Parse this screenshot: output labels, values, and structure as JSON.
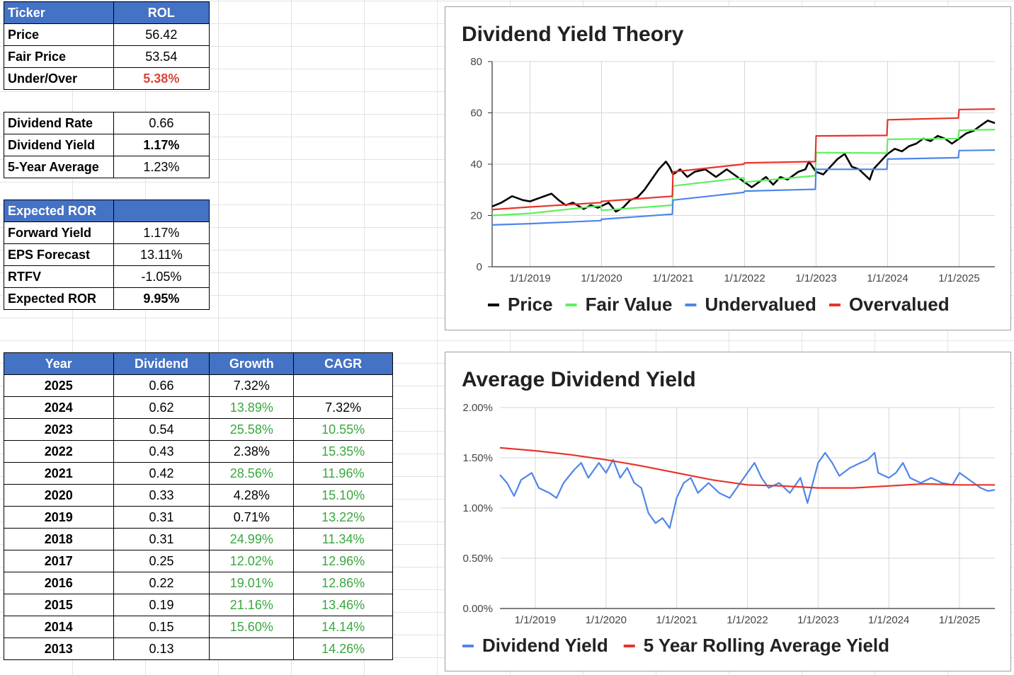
{
  "summary": {
    "header": {
      "label": "Ticker",
      "value": "ROL"
    },
    "rows": [
      {
        "label": "Price",
        "value": "56.42",
        "style": "normal"
      },
      {
        "label": "Fair Price",
        "value": "53.54",
        "style": "normal"
      },
      {
        "label": "Under/Over",
        "value": "5.38%",
        "style": "red"
      }
    ]
  },
  "dividend": {
    "rows": [
      {
        "label": "Dividend Rate",
        "value": "0.66",
        "style": "normal"
      },
      {
        "label": "Dividend Yield",
        "value": "1.17%",
        "style": "bold"
      },
      {
        "label": "5-Year Average",
        "value": "1.23%",
        "style": "normal"
      }
    ]
  },
  "ror": {
    "header": {
      "label": "Expected ROR",
      "value": ""
    },
    "rows": [
      {
        "label": "Forward Yield",
        "value": "1.17%",
        "style": "normal"
      },
      {
        "label": "EPS Forecast",
        "value": "13.11%",
        "style": "normal"
      },
      {
        "label": "RTFV",
        "value": "-1.05%",
        "style": "normal"
      },
      {
        "label": "Expected ROR",
        "value": "9.95%",
        "style": "bold"
      }
    ]
  },
  "history": {
    "columns": [
      "Year",
      "Dividend",
      "Growth",
      "CAGR"
    ],
    "rows": [
      {
        "year": "2025",
        "dividend": "0.66",
        "growth": "7.32%",
        "growth_color": "black",
        "cagr": "",
        "cagr_color": "green"
      },
      {
        "year": "2024",
        "dividend": "0.62",
        "growth": "13.89%",
        "growth_color": "green",
        "cagr": "7.32%",
        "cagr_color": "black"
      },
      {
        "year": "2023",
        "dividend": "0.54",
        "growth": "25.58%",
        "growth_color": "green",
        "cagr": "10.55%",
        "cagr_color": "green"
      },
      {
        "year": "2022",
        "dividend": "0.43",
        "growth": "2.38%",
        "growth_color": "black",
        "cagr": "15.35%",
        "cagr_color": "green"
      },
      {
        "year": "2021",
        "dividend": "0.42",
        "growth": "28.56%",
        "growth_color": "green",
        "cagr": "11.96%",
        "cagr_color": "green"
      },
      {
        "year": "2020",
        "dividend": "0.33",
        "growth": "4.28%",
        "growth_color": "black",
        "cagr": "15.10%",
        "cagr_color": "green"
      },
      {
        "year": "2019",
        "dividend": "0.31",
        "growth": "0.71%",
        "growth_color": "black",
        "cagr": "13.22%",
        "cagr_color": "green"
      },
      {
        "year": "2018",
        "dividend": "0.31",
        "growth": "24.99%",
        "growth_color": "green",
        "cagr": "11.34%",
        "cagr_color": "green"
      },
      {
        "year": "2017",
        "dividend": "0.25",
        "growth": "12.02%",
        "growth_color": "green",
        "cagr": "12.96%",
        "cagr_color": "green"
      },
      {
        "year": "2016",
        "dividend": "0.22",
        "growth": "19.01%",
        "growth_color": "green",
        "cagr": "12.86%",
        "cagr_color": "green"
      },
      {
        "year": "2015",
        "dividend": "0.19",
        "growth": "21.16%",
        "growth_color": "green",
        "cagr": "13.46%",
        "cagr_color": "green"
      },
      {
        "year": "2014",
        "dividend": "0.15",
        "growth": "15.60%",
        "growth_color": "green",
        "cagr": "14.14%",
        "cagr_color": "green"
      },
      {
        "year": "2013",
        "dividend": "0.13",
        "growth": "",
        "growth_color": "black",
        "cagr": "14.26%",
        "cagr_color": "green"
      }
    ]
  },
  "colors": {
    "header_blue": "#4472c4",
    "red": "#d9453a",
    "green": "#38a83d",
    "price": "#000000",
    "fair": "#5ef05e",
    "under": "#4f86e8",
    "over": "#e8332b"
  },
  "chart_data": [
    {
      "type": "line",
      "title": "Dividend Yield Theory",
      "ylim": [
        0,
        80
      ],
      "yticks": [
        "0",
        "20",
        "40",
        "60",
        "80"
      ],
      "x_ticks": [
        "1/1/2019",
        "1/1/2020",
        "1/1/2021",
        "1/1/2022",
        "1/1/2023",
        "1/1/2024",
        "1/1/2025"
      ],
      "x_range": [
        2018.47,
        2025.5
      ],
      "legend_position": "bottom",
      "series": [
        {
          "name": "Price",
          "points": [
            [
              2018.47,
              23.5
            ],
            [
              2018.6,
              25
            ],
            [
              2018.75,
              27.5
            ],
            [
              2018.9,
              26
            ],
            [
              2019.0,
              25.5
            ],
            [
              2019.15,
              27
            ],
            [
              2019.3,
              28.5
            ],
            [
              2019.4,
              26
            ],
            [
              2019.5,
              24
            ],
            [
              2019.6,
              25
            ],
            [
              2019.75,
              22.5
            ],
            [
              2019.85,
              24
            ],
            [
              2019.95,
              23
            ],
            [
              2020.1,
              25
            ],
            [
              2020.2,
              21.5
            ],
            [
              2020.3,
              23
            ],
            [
              2020.4,
              26
            ],
            [
              2020.5,
              27
            ],
            [
              2020.6,
              30
            ],
            [
              2020.7,
              34
            ],
            [
              2020.8,
              38
            ],
            [
              2020.9,
              41
            ],
            [
              2020.95,
              39
            ],
            [
              2021.0,
              36
            ],
            [
              2021.1,
              38
            ],
            [
              2021.2,
              35
            ],
            [
              2021.3,
              37
            ],
            [
              2021.45,
              38
            ],
            [
              2021.6,
              35
            ],
            [
              2021.75,
              38
            ],
            [
              2021.85,
              36
            ],
            [
              2022.0,
              33
            ],
            [
              2022.1,
              31
            ],
            [
              2022.2,
              33
            ],
            [
              2022.3,
              35
            ],
            [
              2022.4,
              32
            ],
            [
              2022.5,
              35
            ],
            [
              2022.6,
              34
            ],
            [
              2022.75,
              37
            ],
            [
              2022.85,
              38
            ],
            [
              2022.9,
              41
            ],
            [
              2023.0,
              37
            ],
            [
              2023.1,
              36
            ],
            [
              2023.2,
              39
            ],
            [
              2023.3,
              42
            ],
            [
              2023.4,
              44
            ],
            [
              2023.5,
              39
            ],
            [
              2023.6,
              38
            ],
            [
              2023.75,
              34
            ],
            [
              2023.8,
              38
            ],
            [
              2023.9,
              41
            ],
            [
              2024.0,
              44
            ],
            [
              2024.1,
              46
            ],
            [
              2024.2,
              45
            ],
            [
              2024.3,
              47
            ],
            [
              2024.4,
              48
            ],
            [
              2024.5,
              50
            ],
            [
              2024.6,
              49
            ],
            [
              2024.7,
              51
            ],
            [
              2024.8,
              50
            ],
            [
              2024.9,
              48
            ],
            [
              2025.0,
              50
            ],
            [
              2025.1,
              52
            ],
            [
              2025.2,
              53
            ],
            [
              2025.3,
              55
            ],
            [
              2025.4,
              57
            ],
            [
              2025.5,
              56
            ]
          ]
        },
        {
          "name": "Fair Value",
          "points": [
            [
              2018.47,
              20
            ],
            [
              2019.0,
              20.8
            ],
            [
              2019.99,
              23.8
            ],
            [
              2020.0,
              22
            ],
            [
              2020.99,
              24
            ],
            [
              2021.0,
              31.5
            ],
            [
              2021.99,
              34.7
            ],
            [
              2022.0,
              33
            ],
            [
              2022.99,
              35.5
            ],
            [
              2023.0,
              44.5
            ],
            [
              2023.99,
              44.3
            ],
            [
              2024.0,
              49.7
            ],
            [
              2024.99,
              50
            ],
            [
              2025.0,
              53.2
            ],
            [
              2025.5,
              53.5
            ]
          ]
        },
        {
          "name": "Undervalued",
          "points": [
            [
              2018.47,
              16.3
            ],
            [
              2019.0,
              16.8
            ],
            [
              2019.99,
              18
            ],
            [
              2020.0,
              18.5
            ],
            [
              2020.99,
              20.5
            ],
            [
              2021.0,
              26
            ],
            [
              2021.99,
              29
            ],
            [
              2022.0,
              29.5
            ],
            [
              2022.99,
              30.2
            ],
            [
              2023.0,
              38
            ],
            [
              2023.99,
              38
            ],
            [
              2024.0,
              42
            ],
            [
              2024.99,
              42.5
            ],
            [
              2025.0,
              45.3
            ],
            [
              2025.5,
              45.5
            ]
          ]
        },
        {
          "name": "Overvalued",
          "points": [
            [
              2018.47,
              22.3
            ],
            [
              2019.0,
              23.3
            ],
            [
              2019.99,
              25
            ],
            [
              2020.0,
              25.5
            ],
            [
              2020.99,
              27.5
            ],
            [
              2021.0,
              37
            ],
            [
              2021.99,
              40
            ],
            [
              2022.0,
              40.5
            ],
            [
              2022.99,
              41
            ],
            [
              2023.0,
              51
            ],
            [
              2023.99,
              51.2
            ],
            [
              2024.0,
              57.3
            ],
            [
              2024.99,
              58
            ],
            [
              2025.0,
              61.3
            ],
            [
              2025.5,
              61.5
            ]
          ]
        }
      ]
    },
    {
      "type": "line",
      "title": "Average Dividend Yield",
      "ylim": [
        0,
        2
      ],
      "yticks": [
        "0.00%",
        "0.50%",
        "1.00%",
        "1.50%",
        "2.00%"
      ],
      "x_ticks": [
        "1/1/2019",
        "1/1/2020",
        "1/1/2021",
        "1/1/2022",
        "1/1/2023",
        "1/1/2024",
        "1/1/2025"
      ],
      "x_range": [
        2018.5,
        2025.5
      ],
      "legend_position": "bottom",
      "series": [
        {
          "name": "Dividend Yield",
          "points": [
            [
              2018.5,
              1.33
            ],
            [
              2018.6,
              1.25
            ],
            [
              2018.7,
              1.12
            ],
            [
              2018.8,
              1.28
            ],
            [
              2018.95,
              1.35
            ],
            [
              2019.05,
              1.2
            ],
            [
              2019.2,
              1.15
            ],
            [
              2019.3,
              1.1
            ],
            [
              2019.4,
              1.25
            ],
            [
              2019.55,
              1.38
            ],
            [
              2019.65,
              1.45
            ],
            [
              2019.75,
              1.3
            ],
            [
              2019.9,
              1.45
            ],
            [
              2020.0,
              1.35
            ],
            [
              2020.1,
              1.48
            ],
            [
              2020.2,
              1.3
            ],
            [
              2020.3,
              1.4
            ],
            [
              2020.4,
              1.25
            ],
            [
              2020.5,
              1.2
            ],
            [
              2020.6,
              0.95
            ],
            [
              2020.7,
              0.85
            ],
            [
              2020.8,
              0.9
            ],
            [
              2020.9,
              0.8
            ],
            [
              2021.0,
              1.1
            ],
            [
              2021.1,
              1.25
            ],
            [
              2021.2,
              1.3
            ],
            [
              2021.3,
              1.15
            ],
            [
              2021.45,
              1.25
            ],
            [
              2021.6,
              1.15
            ],
            [
              2021.75,
              1.1
            ],
            [
              2021.9,
              1.25
            ],
            [
              2022.0,
              1.35
            ],
            [
              2022.1,
              1.45
            ],
            [
              2022.2,
              1.3
            ],
            [
              2022.3,
              1.2
            ],
            [
              2022.45,
              1.25
            ],
            [
              2022.6,
              1.15
            ],
            [
              2022.75,
              1.3
            ],
            [
              2022.85,
              1.05
            ],
            [
              2023.0,
              1.45
            ],
            [
              2023.1,
              1.55
            ],
            [
              2023.2,
              1.45
            ],
            [
              2023.3,
              1.32
            ],
            [
              2023.45,
              1.4
            ],
            [
              2023.6,
              1.45
            ],
            [
              2023.7,
              1.48
            ],
            [
              2023.8,
              1.55
            ],
            [
              2023.85,
              1.35
            ],
            [
              2024.0,
              1.3
            ],
            [
              2024.1,
              1.35
            ],
            [
              2024.2,
              1.45
            ],
            [
              2024.3,
              1.3
            ],
            [
              2024.45,
              1.25
            ],
            [
              2024.6,
              1.3
            ],
            [
              2024.75,
              1.25
            ],
            [
              2024.9,
              1.23
            ],
            [
              2025.0,
              1.35
            ],
            [
              2025.1,
              1.3
            ],
            [
              2025.2,
              1.25
            ],
            [
              2025.3,
              1.2
            ],
            [
              2025.4,
              1.17
            ],
            [
              2025.5,
              1.18
            ]
          ]
        },
        {
          "name": "5 Year Rolling Average Yield",
          "points": [
            [
              2018.5,
              1.6
            ],
            [
              2019.0,
              1.57
            ],
            [
              2019.5,
              1.53
            ],
            [
              2020.0,
              1.48
            ],
            [
              2020.5,
              1.42
            ],
            [
              2021.0,
              1.35
            ],
            [
              2021.5,
              1.28
            ],
            [
              2022.0,
              1.23
            ],
            [
              2022.5,
              1.22
            ],
            [
              2023.0,
              1.2
            ],
            [
              2023.5,
              1.2
            ],
            [
              2024.0,
              1.22
            ],
            [
              2024.5,
              1.24
            ],
            [
              2025.0,
              1.23
            ],
            [
              2025.5,
              1.23
            ]
          ]
        }
      ]
    }
  ]
}
